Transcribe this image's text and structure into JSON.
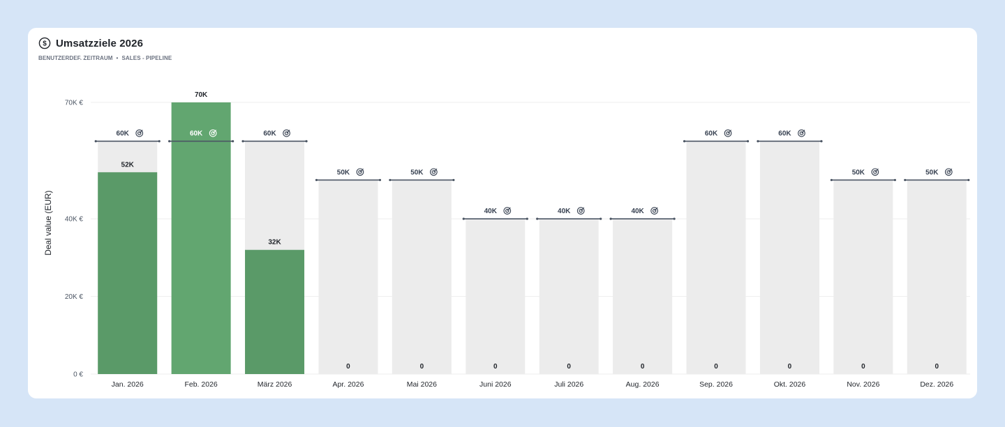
{
  "header": {
    "title": "Umsatzziele 2026",
    "subtitle_left": "BENUTZERDEF. ZEITRAUM",
    "subtitle_sep": "•",
    "subtitle_right": "SALES - PIPELINE"
  },
  "colors": {
    "bar_fill": "#5a9a68",
    "bar_fill_highlight": "#62a670",
    "goal_background": "#ececec",
    "goal_line": "#4b5563",
    "card_background": "#ffffff",
    "page_background": "#d6e5f7"
  },
  "chart_data": {
    "type": "bar",
    "categories": [
      "Jan. 2026",
      "Feb. 2026",
      "März 2026",
      "Apr. 2026",
      "Mai 2026",
      "Juni 2026",
      "Juli 2026",
      "Aug. 2026",
      "Sep. 2026",
      "Okt. 2026",
      "Nov. 2026",
      "Dez. 2026"
    ],
    "values": [
      52000,
      70000,
      32000,
      0,
      0,
      0,
      0,
      0,
      0,
      0,
      0,
      0
    ],
    "value_labels": [
      "52K",
      "70K",
      "32K",
      "0",
      "0",
      "0",
      "0",
      "0",
      "0",
      "0",
      "0",
      "0"
    ],
    "goals": [
      60000,
      60000,
      60000,
      50000,
      50000,
      40000,
      40000,
      40000,
      60000,
      60000,
      50000,
      50000
    ],
    "goal_labels": [
      "60K",
      "60K",
      "60K",
      "50K",
      "50K",
      "40K",
      "40K",
      "40K",
      "60K",
      "60K",
      "50K",
      "50K"
    ],
    "goal_icon": "target-icon",
    "ylabel": "Deal value (EUR)",
    "yticks": [
      0,
      20000,
      40000,
      70000
    ],
    "ytick_labels": [
      "0 €",
      "20K €",
      "40K €",
      "70K €"
    ],
    "ylim": [
      0,
      70000
    ],
    "grid": true
  }
}
